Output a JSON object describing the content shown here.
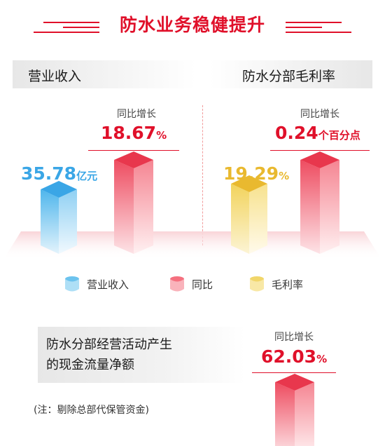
{
  "title": "防水业务稳健提升",
  "left_panel": {
    "label": "营业收入",
    "revenue_value": "35.78",
    "revenue_unit": "亿元",
    "growth_caption": "同比增长",
    "growth_value": "18.67",
    "growth_unit": "%"
  },
  "right_panel": {
    "label": "防水分部毛利率",
    "margin_value": "19.29",
    "margin_unit": "%",
    "growth_caption": "同比增长",
    "growth_value": "0.24",
    "growth_unit": "个百分点"
  },
  "legend": [
    {
      "label": "营业收入",
      "color": "#6cc3ee"
    },
    {
      "label": "同比",
      "color": "#f5707f"
    },
    {
      "label": "毛利率",
      "color": "#f1d66a"
    }
  ],
  "bottom_panel": {
    "label_line1": "防水分部经营活动产生",
    "label_line2": "的现金流量净额",
    "growth_caption": "同比增长",
    "growth_value": "62.03",
    "growth_unit": "%",
    "note": "(注：剔除总部代保管资金)"
  },
  "colors": {
    "accent": "#e0102a",
    "revenue_blue": "#3aa6e6",
    "margin_yellow": "#e9b92f",
    "growth_red": "#e8374d"
  },
  "chart_data": {
    "type": "bar",
    "series": [
      {
        "name": "营业收入",
        "value": 35.78,
        "unit": "亿元"
      },
      {
        "name": "同比",
        "value": 18.67,
        "unit": "%"
      },
      {
        "name": "毛利率",
        "value": 19.29,
        "unit": "%"
      },
      {
        "name": "同比",
        "value": 0.24,
        "unit": "个百分点"
      },
      {
        "name": "同比",
        "value": 62.03,
        "unit": "%"
      }
    ]
  }
}
